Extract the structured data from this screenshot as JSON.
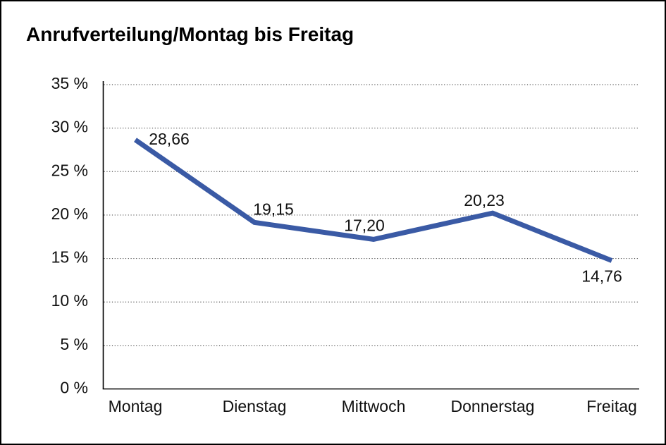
{
  "window": {
    "title": "Anrufverteilung/Montag bis Freitag"
  },
  "chart_data": {
    "type": "line",
    "title": "Anrufverteilung/Montag bis Freitag",
    "categories": [
      "Montag",
      "Dienstag",
      "Mittwoch",
      "Donnerstag",
      "Freitag"
    ],
    "series": [
      {
        "name": "Anrufverteilung",
        "values": [
          28.66,
          19.15,
          17.2,
          20.23,
          14.76
        ]
      }
    ],
    "value_labels": [
      "28,66",
      "19,15",
      "17,20",
      "20,23",
      "14,76"
    ],
    "xlabel": "",
    "ylabel": "",
    "ylim": [
      0,
      35
    ],
    "y_tick_step": 5,
    "y_tick_labels": [
      "0 %",
      "5 %",
      "10 %",
      "15 %",
      "20 %",
      "25 %",
      "30 %",
      "35 %"
    ],
    "grid": "horizontal-dotted",
    "legend": "none",
    "colors": {
      "line": "#3A5AA5",
      "axis": "#000000",
      "gridline": "#5a5a5a",
      "text": "#111111",
      "background": "#ffffff",
      "frame_border": "#000000"
    }
  }
}
